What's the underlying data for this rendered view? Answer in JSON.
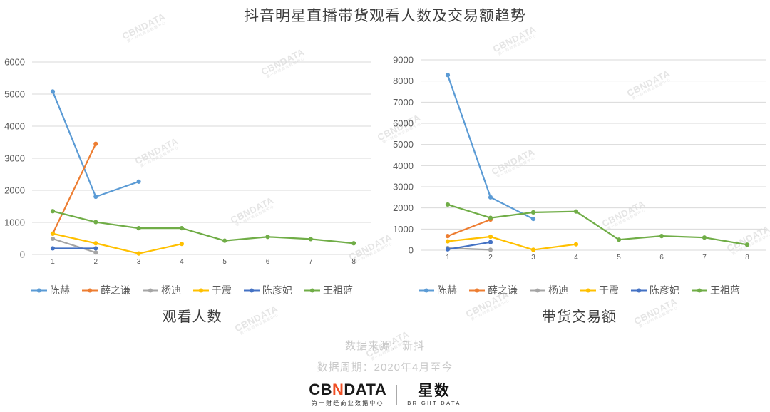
{
  "title": "抖音明星直播带货观看人数及交易额趋势",
  "watermark": {
    "text": "CBNDATA",
    "subtext": "第一财经商业数据中心"
  },
  "chart_data": [
    {
      "type": "line",
      "title": "观看人数",
      "x": [
        1,
        2,
        3,
        4,
        5,
        6,
        7,
        8
      ],
      "xlabel": "",
      "ylabel": "",
      "ylim": [
        0,
        6000
      ],
      "ytick_interval": 1000,
      "grid": "horizontal",
      "legend_position": "bottom",
      "series": [
        {
          "name": "陈赫",
          "color": "#5B9BD5",
          "values": [
            5080,
            1800,
            2270
          ]
        },
        {
          "name": "薛之谦",
          "color": "#ED7D31",
          "values": [
            650,
            3450
          ]
        },
        {
          "name": "杨迪",
          "color": "#A5A5A5",
          "values": [
            490,
            60
          ]
        },
        {
          "name": "于震",
          "color": "#FFC000",
          "values": [
            650,
            350,
            30,
            330
          ]
        },
        {
          "name": "陈彦妃",
          "color": "#4472C4",
          "values": [
            190,
            190
          ]
        },
        {
          "name": "王祖蓝",
          "color": "#70AD47",
          "values": [
            1350,
            1010,
            820,
            820,
            430,
            550,
            480,
            350
          ]
        }
      ]
    },
    {
      "type": "line",
      "title": "带货交易额",
      "x": [
        1,
        2,
        3,
        4,
        5,
        6,
        7,
        8
      ],
      "xlabel": "",
      "ylabel": "",
      "ylim": [
        0,
        9000
      ],
      "ytick_interval": 1000,
      "grid": "horizontal",
      "legend_position": "bottom",
      "series": [
        {
          "name": "陈赫",
          "color": "#5B9BD5",
          "values": [
            8280,
            2500,
            1480
          ]
        },
        {
          "name": "薛之谦",
          "color": "#ED7D31",
          "values": [
            670,
            1450
          ]
        },
        {
          "name": "杨迪",
          "color": "#A5A5A5",
          "values": [
            100,
            20
          ]
        },
        {
          "name": "于震",
          "color": "#FFC000",
          "values": [
            420,
            640,
            20,
            280
          ]
        },
        {
          "name": "陈彦妃",
          "color": "#4472C4",
          "values": [
            40,
            380
          ]
        },
        {
          "name": "王祖蓝",
          "color": "#70AD47",
          "values": [
            2160,
            1530,
            1790,
            1830,
            500,
            670,
            600,
            260
          ]
        }
      ]
    }
  ],
  "footer": {
    "source": "数据来源：新抖",
    "period": "数据周期：2020年4月至今"
  },
  "logos": {
    "cbn_part1": "CB",
    "cbn_part2": "N",
    "cbn_part3": "DATA",
    "cbn_sub": "第一财经商业数据中心",
    "cbn_accent_color": "#F04E23",
    "star": "星数",
    "star_sub": "BRIGHT DATA"
  }
}
